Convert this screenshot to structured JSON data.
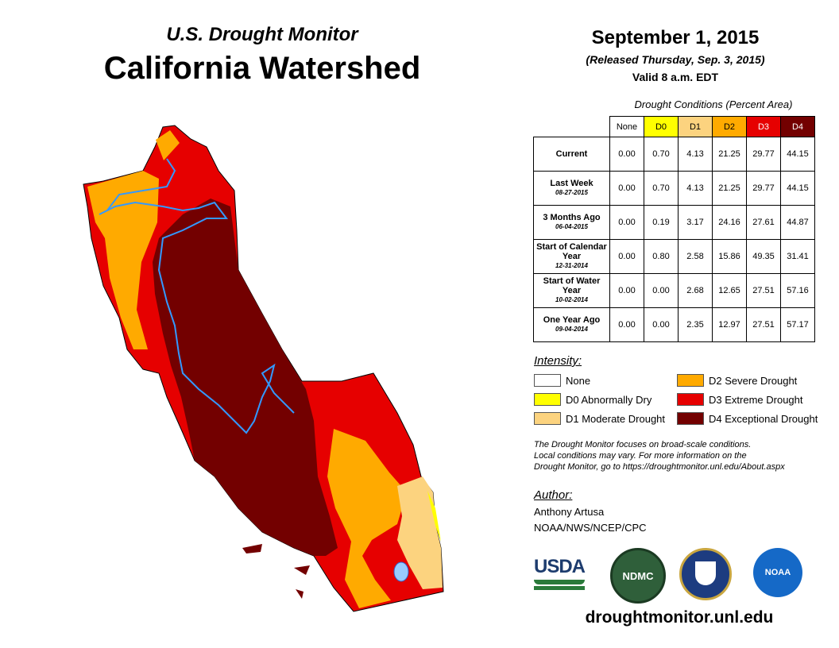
{
  "header": {
    "subtitle": "U.S. Drought Monitor",
    "title": "California Watershed",
    "date": "September 1, 2015",
    "released": "(Released Thursday, Sep. 3, 2015)",
    "valid": "Valid 8 a.m. EDT"
  },
  "table": {
    "caption": "Drought Conditions (Percent Area)",
    "columns": [
      "None",
      "D0",
      "D1",
      "D2",
      "D3",
      "D4"
    ],
    "rows": [
      {
        "label": "Current",
        "date": "",
        "values": [
          "0.00",
          "0.70",
          "4.13",
          "21.25",
          "29.77",
          "44.15"
        ]
      },
      {
        "label": "Last Week",
        "date": "08-27-2015",
        "values": [
          "0.00",
          "0.70",
          "4.13",
          "21.25",
          "29.77",
          "44.15"
        ]
      },
      {
        "label": "3 Months Ago",
        "date": "06-04-2015",
        "values": [
          "0.00",
          "0.19",
          "3.17",
          "24.16",
          "27.61",
          "44.87"
        ]
      },
      {
        "label": "Start of Calendar Year",
        "date": "12-31-2014",
        "values": [
          "0.00",
          "0.80",
          "2.58",
          "15.86",
          "49.35",
          "31.41"
        ]
      },
      {
        "label": "Start of Water Year",
        "date": "10-02-2014",
        "values": [
          "0.00",
          "0.00",
          "2.68",
          "12.65",
          "27.51",
          "57.16"
        ]
      },
      {
        "label": "One Year Ago",
        "date": "09-04-2014",
        "values": [
          "0.00",
          "0.00",
          "2.35",
          "12.97",
          "27.51",
          "57.17"
        ]
      }
    ]
  },
  "legend": {
    "title": "Intensity:",
    "items": [
      {
        "label": "None",
        "color": "#ffffff"
      },
      {
        "label": "D0 Abnormally Dry",
        "color": "#ffff00"
      },
      {
        "label": "D1 Moderate Drought",
        "color": "#fcd37f"
      },
      {
        "label": "D2 Severe Drought",
        "color": "#ffaa00"
      },
      {
        "label": "D3 Extreme Drought",
        "color": "#e60000"
      },
      {
        "label": "D4 Exceptional Drought",
        "color": "#730000"
      }
    ]
  },
  "note": [
    "The Drought Monitor focuses on broad-scale conditions.",
    "Local conditions may vary. For more information on the",
    "Drought Monitor, go to https://droughtmonitor.unl.edu/About.aspx"
  ],
  "author": {
    "heading": "Author:",
    "name": "Anthony Artusa",
    "org": "NOAA/NWS/NCEP/CPC"
  },
  "logos": {
    "usda": "USDA",
    "ndmc": "NDMC",
    "noaa": "NOAA"
  },
  "footer_url": "droughtmonitor.unl.edu"
}
